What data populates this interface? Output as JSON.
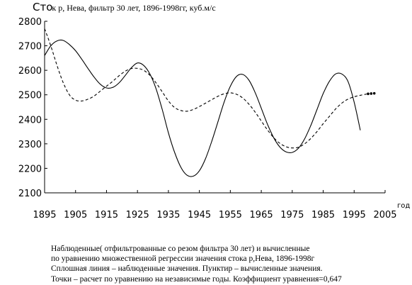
{
  "chart_data": {
    "type": "line",
    "title": "Сток р, Нева, фильтр 30 лет, 1896-1998гг, куб.м/с",
    "title_short": "Сто",
    "title_rest": "к р, Нева, фильтр 30 лет, 1896-1998гг, куб.м/с",
    "xlabel": "год",
    "ylabel": "",
    "xlim": [
      1895,
      2005
    ],
    "ylim": [
      2100,
      2800
    ],
    "xticks": [
      1895,
      1905,
      1915,
      1925,
      1935,
      1945,
      1955,
      1965,
      1975,
      1985,
      1995,
      2005
    ],
    "yticks": [
      2100,
      2200,
      2300,
      2400,
      2500,
      2600,
      2700,
      2800
    ],
    "grid": false,
    "series": [
      {
        "name": "Сплошная линия – наблюденные значения",
        "style": "solid",
        "x": [
          1895,
          1897,
          1899,
          1901,
          1903,
          1905,
          1907,
          1909,
          1911,
          1913,
          1915,
          1917,
          1919,
          1921,
          1923,
          1925,
          1927,
          1929,
          1931,
          1933,
          1935,
          1937,
          1939,
          1941,
          1943,
          1945,
          1947,
          1949,
          1951,
          1953,
          1955,
          1957,
          1959,
          1961,
          1963,
          1965,
          1967,
          1969,
          1971,
          1973,
          1975,
          1977,
          1979,
          1981,
          1983,
          1985,
          1987,
          1989,
          1991,
          1993,
          1995,
          1997
        ],
        "values": [
          2660,
          2700,
          2720,
          2722,
          2705,
          2680,
          2645,
          2608,
          2572,
          2543,
          2528,
          2530,
          2548,
          2578,
          2610,
          2630,
          2620,
          2585,
          2525,
          2440,
          2345,
          2265,
          2205,
          2172,
          2168,
          2190,
          2240,
          2310,
          2390,
          2470,
          2535,
          2575,
          2583,
          2560,
          2510,
          2445,
          2380,
          2325,
          2287,
          2267,
          2265,
          2282,
          2320,
          2375,
          2440,
          2505,
          2555,
          2585,
          2585,
          2555,
          2470,
          2355
        ]
      },
      {
        "name": "Пунктир – вычисленные значения",
        "style": "dashed",
        "x": [
          1895,
          1897,
          1899,
          1901,
          1903,
          1905,
          1907,
          1909,
          1911,
          1913,
          1915,
          1917,
          1919,
          1921,
          1923,
          1925,
          1927,
          1929,
          1931,
          1933,
          1935,
          1937,
          1939,
          1941,
          1943,
          1945,
          1947,
          1949,
          1951,
          1953,
          1955,
          1957,
          1959,
          1961,
          1963,
          1965,
          1967,
          1969,
          1971,
          1973,
          1975,
          1977,
          1979,
          1981,
          1983,
          1985,
          1987,
          1989,
          1991,
          1993,
          1995,
          1997,
          1999
        ],
        "values": [
          2770,
          2700,
          2620,
          2550,
          2500,
          2478,
          2475,
          2482,
          2495,
          2515,
          2535,
          2555,
          2577,
          2596,
          2607,
          2608,
          2600,
          2580,
          2549,
          2512,
          2475,
          2448,
          2436,
          2433,
          2440,
          2452,
          2466,
          2480,
          2494,
          2504,
          2508,
          2502,
          2487,
          2462,
          2430,
          2393,
          2357,
          2325,
          2302,
          2288,
          2283,
          2286,
          2300,
          2322,
          2350,
          2382,
          2412,
          2442,
          2466,
          2482,
          2492,
          2498,
          2503
        ]
      },
      {
        "name": "Точки – расчет по уравнению на независимые годы",
        "style": "points",
        "x": [
          1999.5,
          2000.5,
          2001.5
        ],
        "values": [
          2504,
          2505,
          2506
        ]
      }
    ]
  },
  "caption": {
    "line1": "Наблюденные( отфильтрованные со резом фильтра 30 лет) и вычисленные",
    "line2": "по уравнению множественной регрессии значения стока р,Нева, 1896-1998г",
    "line3": "Сплошная линия – наблюденные значения. Пунктир – вычисленные значения.",
    "line4": "Точки – расчет по уравнению на независимые годы. Коэффициент уравнения=0,647"
  }
}
